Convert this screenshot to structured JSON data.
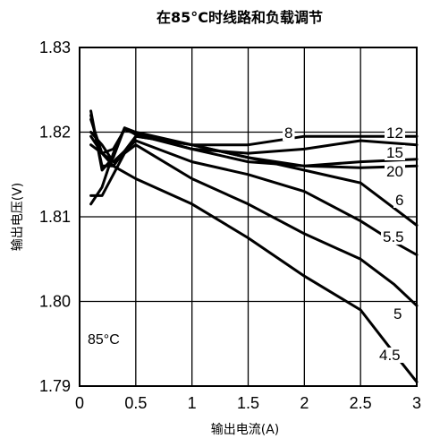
{
  "chart_data": {
    "type": "line",
    "title": "在85°C时线路和负载调节",
    "xlabel": "输出电流(A)",
    "ylabel": "输出电压(V)",
    "xlim": [
      0,
      3
    ],
    "ylim": [
      1.79,
      1.83
    ],
    "xticks": [
      0,
      0.5,
      1,
      1.5,
      2,
      2.5,
      3
    ],
    "xtick_labels": [
      "0",
      "0.5",
      "1",
      "1.5",
      "2",
      "2.5",
      "3"
    ],
    "yticks": [
      1.79,
      1.8,
      1.81,
      1.82,
      1.83
    ],
    "ytick_labels": [
      "1.79",
      "1.80",
      "1.81",
      "1.82",
      "1.83"
    ],
    "grid": true,
    "annotation": "85°C",
    "series": [
      {
        "name": "4.5",
        "x": [
          0.1,
          0.2,
          0.3,
          0.5,
          1.0,
          1.5,
          2.0,
          2.5,
          2.85,
          3.0
        ],
        "y": [
          1.8185,
          1.8175,
          1.816,
          1.8145,
          1.8115,
          1.8075,
          1.803,
          1.799,
          1.793,
          1.7905
        ]
      },
      {
        "name": "5",
        "x": [
          0.1,
          0.2,
          0.3,
          0.5,
          1.0,
          1.5,
          2.0,
          2.5,
          2.8,
          3.0
        ],
        "y": [
          1.82,
          1.8185,
          1.8165,
          1.8185,
          1.8145,
          1.8115,
          1.808,
          1.805,
          1.802,
          1.7995
        ]
      },
      {
        "name": "5.5",
        "x": [
          0.1,
          0.2,
          0.3,
          0.5,
          1.0,
          1.5,
          2.0,
          2.5,
          2.8,
          3.0
        ],
        "y": [
          1.8215,
          1.8175,
          1.8165,
          1.819,
          1.8165,
          1.815,
          1.813,
          1.8095,
          1.807,
          1.8055
        ]
      },
      {
        "name": "6",
        "x": [
          0.1,
          0.2,
          0.3,
          0.5,
          1.0,
          1.5,
          2.0,
          2.5,
          2.8,
          3.0
        ],
        "y": [
          1.822,
          1.816,
          1.816,
          1.8195,
          1.8185,
          1.817,
          1.8155,
          1.814,
          1.811,
          1.809
        ]
      },
      {
        "name": "8",
        "x": [
          0.1,
          0.2,
          0.3,
          0.4,
          0.5,
          1.0,
          1.5,
          2.0,
          2.5,
          3.0
        ],
        "y": [
          1.8125,
          1.8125,
          1.815,
          1.8175,
          1.8195,
          1.8185,
          1.817,
          1.816,
          1.8165,
          1.8168
        ]
      },
      {
        "name": "12",
        "x": [
          0.1,
          0.2,
          0.3,
          0.4,
          0.5,
          1.0,
          1.5,
          2.0,
          2.5,
          3.0
        ],
        "y": [
          1.8115,
          1.8135,
          1.8175,
          1.8205,
          1.82,
          1.8185,
          1.8185,
          1.8195,
          1.8195,
          1.8195
        ]
      },
      {
        "name": "15",
        "x": [
          0.1,
          0.2,
          0.3,
          0.4,
          0.5,
          1.0,
          1.5,
          2.0,
          2.5,
          3.0
        ],
        "y": [
          1.8225,
          1.8155,
          1.817,
          1.8205,
          1.8197,
          1.818,
          1.8175,
          1.818,
          1.819,
          1.8185
        ]
      },
      {
        "name": "20",
        "x": [
          0.1,
          0.2,
          0.3,
          0.4,
          0.5,
          1.0,
          1.5,
          2.0,
          2.5,
          3.0
        ],
        "y": [
          1.8195,
          1.8175,
          1.818,
          1.8203,
          1.8198,
          1.818,
          1.8165,
          1.816,
          1.8158,
          1.816
        ]
      }
    ]
  }
}
